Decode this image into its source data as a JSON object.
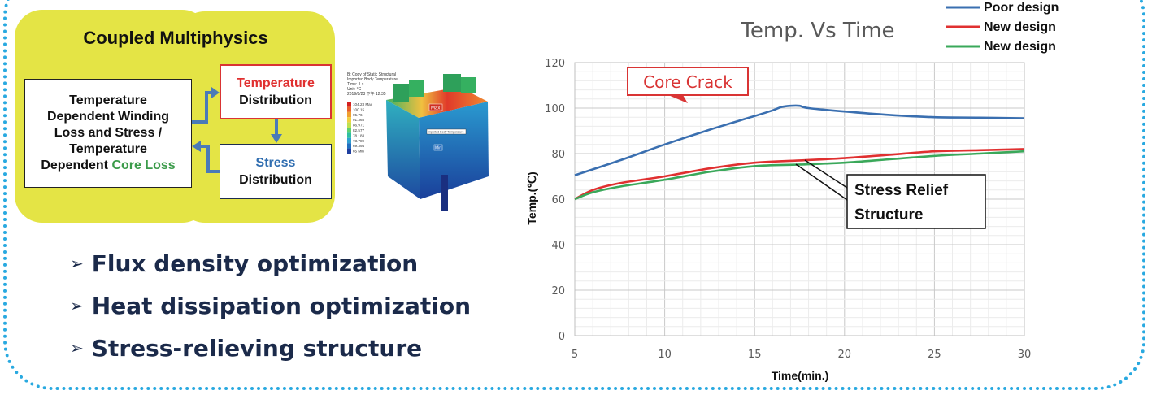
{
  "diagram": {
    "title": "Coupled Multiphysics",
    "left_box": {
      "line1": "Temperature",
      "line2": "Dependent Winding",
      "line3": "Loss and Stress /",
      "line4": "Temperature",
      "line5_prefix": "Dependent ",
      "line5_highlight": "Core Loss"
    },
    "temp_box": {
      "line1": "Temperature",
      "line2": "Distribution"
    },
    "stress_box": {
      "line1": "Stress",
      "line2": "Distribution"
    },
    "fea_legend": {
      "header": [
        "B: Copy of Static Structural",
        "Imported Body Temperature",
        "Time: 1 s",
        "Unit: °C",
        "2019/8/23 下午 12:35"
      ],
      "values": [
        "104.23 Max",
        "100.15",
        "95.76",
        "91.365",
        "86.971",
        "82.577",
        "78.183",
        "73.789",
        "69.394",
        "65 Min"
      ],
      "colors": [
        "#d42020",
        "#e8602a",
        "#f0a030",
        "#f0d040",
        "#c0e050",
        "#60d070",
        "#30c0a0",
        "#30a0d0",
        "#2070c0",
        "#1f3fa0"
      ],
      "max_tag": "Max",
      "min_tag": "Min",
      "probe": "Imported Body Temperature"
    }
  },
  "bullets": [
    "Flux density optimization",
    "Heat dissipation optimization",
    "Stress-relieving structure"
  ],
  "colors": {
    "frame": "#29a9e0",
    "highlight_yellow": "#e4e445",
    "accent_red": "#d93434"
  },
  "chart_data": {
    "type": "line",
    "title": "Temp. Vs Time",
    "xlabel": "Time(min.)",
    "ylabel": "Temp.(℃)",
    "xlim": [
      5,
      30
    ],
    "ylim": [
      0,
      120
    ],
    "xticks": [
      5,
      10,
      15,
      20,
      25,
      30
    ],
    "yticks": [
      0,
      20,
      40,
      60,
      80,
      100,
      120
    ],
    "grid": true,
    "legend_position": "top-right",
    "series": [
      {
        "name": "Poor design",
        "color": "#3a6fb0",
        "x": [
          5,
          7.5,
          10,
          12.5,
          15,
          16,
          16.5,
          17,
          17.5,
          18,
          20,
          22.5,
          25,
          27.5,
          30
        ],
        "y": [
          70.5,
          77,
          84,
          90.5,
          96.5,
          99,
          100.5,
          101,
          101,
          100,
          98.5,
          97,
          96,
          95.8,
          95.5
        ]
      },
      {
        "name": "New design",
        "color": "#e03030",
        "x": [
          5,
          6,
          7.5,
          10,
          12.5,
          15,
          17.5,
          20,
          22.5,
          25,
          27.5,
          30
        ],
        "y": [
          60,
          64,
          67,
          70,
          73.5,
          76,
          77,
          78,
          79.5,
          81,
          81.5,
          82
        ]
      },
      {
        "name": "New design",
        "color": "#3aa85a",
        "x": [
          5,
          6,
          7.5,
          10,
          12.5,
          15,
          17.5,
          20,
          22.5,
          25,
          27.5,
          30
        ],
        "y": [
          60,
          63,
          65.5,
          68.5,
          72,
          74.5,
          75.2,
          76,
          77.5,
          79,
          80,
          81
        ]
      }
    ],
    "annotations": {
      "core_crack": "Core Crack",
      "stress_relief_line1": "Stress Relief",
      "stress_relief_line2": "Structure"
    }
  }
}
